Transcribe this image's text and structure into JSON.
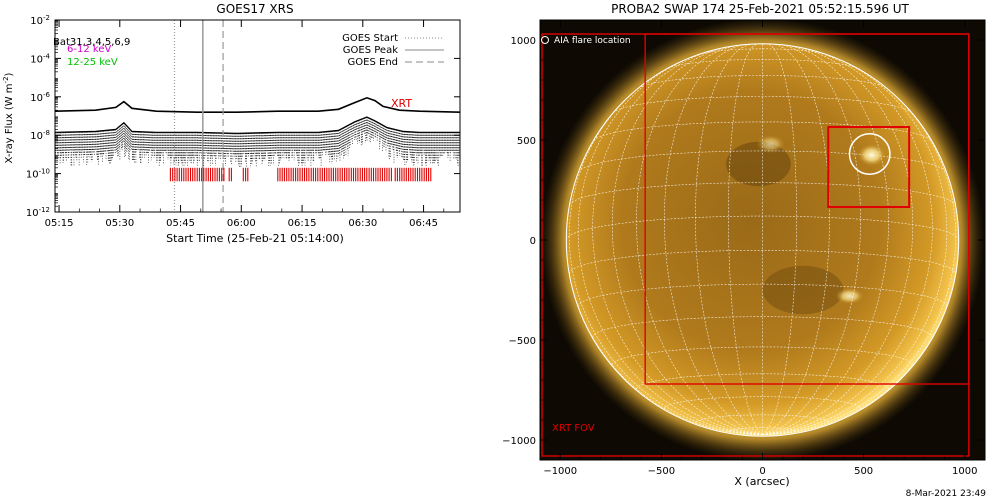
{
  "left_panel": {
    "title": "GOES17 XRS",
    "ylabel": "X-ray Flux (W m",
    "ylabel_sup": "-2",
    "ylabel_close": ")",
    "xlabel": "Start Time (25-Feb-21 05:14:00)",
    "xrt_label": "XRT",
    "legend_left": [
      {
        "text": "Bat31,3,4,5,6,9",
        "color": "#000000"
      },
      {
        "text": "6-12 keV",
        "color": "#d000d0"
      },
      {
        "text": "12-25 keV",
        "color": "#00c000"
      }
    ],
    "legend_right": [
      {
        "text": "GOES Start",
        "style": "dotted"
      },
      {
        "text": "GOES Peak",
        "style": "solid"
      },
      {
        "text": "GOES End",
        "style": "dashed"
      }
    ]
  },
  "right_panel": {
    "title": "PROBA2 SWAP 174 25-Feb-2021 05:52:15.596 UT",
    "aia_label": "AIA flare location",
    "fov_label": "XRT FOV",
    "xlabel": "X (arcsec)",
    "footer": "8-Mar-2021 23:49"
  },
  "chart_data": [
    {
      "type": "line",
      "title": "GOES17 XRS",
      "xlabel": "Start Time (25-Feb-21 05:14:00)",
      "ylabel": "X-ray Flux (W m-2)",
      "x_ticks": [
        "05:15",
        "05:30",
        "05:45",
        "06:00",
        "06:15",
        "06:30",
        "06:45"
      ],
      "x_tick_minutes": [
        1,
        16,
        31,
        46,
        61,
        76,
        91
      ],
      "xlim_minutes": [
        0,
        100
      ],
      "y_scale": "log",
      "ylim": [
        1e-12,
        0.01
      ],
      "y_ticks": [
        "10-12",
        "10-10",
        "10-8",
        "10-6",
        "10-4",
        "10-2"
      ],
      "y_tick_exponents": [
        -12,
        -10,
        -8,
        -6,
        -4,
        -2
      ],
      "series": [
        {
          "name": "XRT",
          "x_minutes": [
            0,
            10,
            15,
            17,
            19,
            25,
            35,
            45,
            55,
            65,
            70,
            74,
            77,
            79,
            81,
            85,
            90,
            100
          ],
          "log_values": [
            -6.75,
            -6.7,
            -6.55,
            -6.25,
            -6.6,
            -6.75,
            -6.8,
            -6.8,
            -6.75,
            -6.75,
            -6.65,
            -6.3,
            -6.05,
            -6.2,
            -6.5,
            -6.7,
            -6.75,
            -6.8
          ]
        },
        {
          "name": "12-25 keV",
          "x_minutes": [
            0,
            10,
            15,
            17,
            19,
            25,
            35,
            45,
            55,
            65,
            70,
            74,
            77,
            79,
            82,
            86,
            90,
            100
          ],
          "log_values": [
            -7.85,
            -7.8,
            -7.7,
            -7.35,
            -7.8,
            -7.85,
            -7.85,
            -7.9,
            -7.85,
            -7.85,
            -7.75,
            -7.3,
            -7.05,
            -7.25,
            -7.6,
            -7.8,
            -7.85,
            -7.85
          ]
        }
      ],
      "vlines": [
        {
          "label": "GOES Start",
          "minute": 29.5,
          "style": "dotted"
        },
        {
          "label": "GOES Peak",
          "minute": 36.5,
          "style": "solid"
        },
        {
          "label": "GOES End",
          "minute": 41.5,
          "style": "dashed"
        }
      ],
      "xrt_coverage_minutes": [
        [
          28.5,
          42
        ],
        [
          43,
          44
        ],
        [
          46.5,
          48
        ],
        [
          55,
          83.5
        ],
        [
          84,
          93
        ]
      ]
    },
    {
      "type": "scatter",
      "title": "PROBA2 SWAP 174 25-Feb-2021 05:52:15.596 UT",
      "xlabel": "X (arcsec)",
      "ylabel": "",
      "xlim": [
        -1100,
        1100
      ],
      "ylim": [
        -1100,
        1100
      ],
      "x_ticks": [
        -1000,
        -500,
        0,
        500,
        1000
      ],
      "y_ticks": [
        -1000,
        -500,
        0,
        500,
        1000
      ],
      "solar_radius_arcsec": 970,
      "aia_flare_location": {
        "x": 530,
        "y": 430,
        "r": 100
      },
      "xrt_fov_boxes": [
        {
          "x0": -1090,
          "x1": 1020,
          "y0": -1080,
          "y1": 1030
        },
        {
          "x0": -580,
          "x1": 1020,
          "y0": -720,
          "y1": 1030
        },
        {
          "x0": 325,
          "x1": 725,
          "y0": 165,
          "y1": 565
        }
      ]
    }
  ]
}
